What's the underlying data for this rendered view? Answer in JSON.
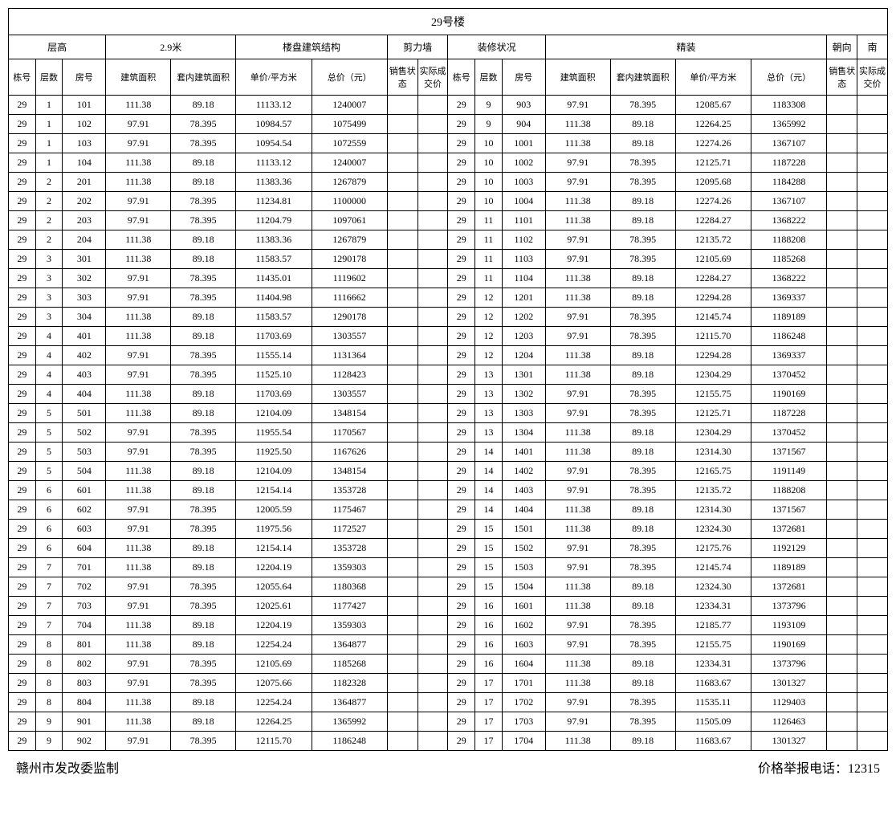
{
  "title": "29号楼",
  "header_group1": {
    "h1": "层高",
    "h2": "2.9米",
    "h3": "楼盘建筑结构",
    "h4": "剪力墙",
    "h5": "装修状况",
    "h6": "精装",
    "h7": "朝向",
    "h8": "南"
  },
  "columns": {
    "c1": "栋号",
    "c2": "层数",
    "c3": "房号",
    "c4": "建筑面积",
    "c5": "套内建筑面积",
    "c6": "单价/平方米",
    "c7": "总价（元）",
    "c8": "销售状态",
    "c9": "实际成交价"
  },
  "left_rows": [
    [
      "29",
      "1",
      "101",
      "111.38",
      "89.18",
      "11133.12",
      "1240007",
      "",
      ""
    ],
    [
      "29",
      "1",
      "102",
      "97.91",
      "78.395",
      "10984.57",
      "1075499",
      "",
      ""
    ],
    [
      "29",
      "1",
      "103",
      "97.91",
      "78.395",
      "10954.54",
      "1072559",
      "",
      ""
    ],
    [
      "29",
      "1",
      "104",
      "111.38",
      "89.18",
      "11133.12",
      "1240007",
      "",
      ""
    ],
    [
      "29",
      "2",
      "201",
      "111.38",
      "89.18",
      "11383.36",
      "1267879",
      "",
      ""
    ],
    [
      "29",
      "2",
      "202",
      "97.91",
      "78.395",
      "11234.81",
      "1100000",
      "",
      ""
    ],
    [
      "29",
      "2",
      "203",
      "97.91",
      "78.395",
      "11204.79",
      "1097061",
      "",
      ""
    ],
    [
      "29",
      "2",
      "204",
      "111.38",
      "89.18",
      "11383.36",
      "1267879",
      "",
      ""
    ],
    [
      "29",
      "3",
      "301",
      "111.38",
      "89.18",
      "11583.57",
      "1290178",
      "",
      ""
    ],
    [
      "29",
      "3",
      "302",
      "97.91",
      "78.395",
      "11435.01",
      "1119602",
      "",
      ""
    ],
    [
      "29",
      "3",
      "303",
      "97.91",
      "78.395",
      "11404.98",
      "1116662",
      "",
      ""
    ],
    [
      "29",
      "3",
      "304",
      "111.38",
      "89.18",
      "11583.57",
      "1290178",
      "",
      ""
    ],
    [
      "29",
      "4",
      "401",
      "111.38",
      "89.18",
      "11703.69",
      "1303557",
      "",
      ""
    ],
    [
      "29",
      "4",
      "402",
      "97.91",
      "78.395",
      "11555.14",
      "1131364",
      "",
      ""
    ],
    [
      "29",
      "4",
      "403",
      "97.91",
      "78.395",
      "11525.10",
      "1128423",
      "",
      ""
    ],
    [
      "29",
      "4",
      "404",
      "111.38",
      "89.18",
      "11703.69",
      "1303557",
      "",
      ""
    ],
    [
      "29",
      "5",
      "501",
      "111.38",
      "89.18",
      "12104.09",
      "1348154",
      "",
      ""
    ],
    [
      "29",
      "5",
      "502",
      "97.91",
      "78.395",
      "11955.54",
      "1170567",
      "",
      ""
    ],
    [
      "29",
      "5",
      "503",
      "97.91",
      "78.395",
      "11925.50",
      "1167626",
      "",
      ""
    ],
    [
      "29",
      "5",
      "504",
      "111.38",
      "89.18",
      "12104.09",
      "1348154",
      "",
      ""
    ],
    [
      "29",
      "6",
      "601",
      "111.38",
      "89.18",
      "12154.14",
      "1353728",
      "",
      ""
    ],
    [
      "29",
      "6",
      "602",
      "97.91",
      "78.395",
      "12005.59",
      "1175467",
      "",
      ""
    ],
    [
      "29",
      "6",
      "603",
      "97.91",
      "78.395",
      "11975.56",
      "1172527",
      "",
      ""
    ],
    [
      "29",
      "6",
      "604",
      "111.38",
      "89.18",
      "12154.14",
      "1353728",
      "",
      ""
    ],
    [
      "29",
      "7",
      "701",
      "111.38",
      "89.18",
      "12204.19",
      "1359303",
      "",
      ""
    ],
    [
      "29",
      "7",
      "702",
      "97.91",
      "78.395",
      "12055.64",
      "1180368",
      "",
      ""
    ],
    [
      "29",
      "7",
      "703",
      "97.91",
      "78.395",
      "12025.61",
      "1177427",
      "",
      ""
    ],
    [
      "29",
      "7",
      "704",
      "111.38",
      "89.18",
      "12204.19",
      "1359303",
      "",
      ""
    ],
    [
      "29",
      "8",
      "801",
      "111.38",
      "89.18",
      "12254.24",
      "1364877",
      "",
      ""
    ],
    [
      "29",
      "8",
      "802",
      "97.91",
      "78.395",
      "12105.69",
      "1185268",
      "",
      ""
    ],
    [
      "29",
      "8",
      "803",
      "97.91",
      "78.395",
      "12075.66",
      "1182328",
      "",
      ""
    ],
    [
      "29",
      "8",
      "804",
      "111.38",
      "89.18",
      "12254.24",
      "1364877",
      "",
      ""
    ],
    [
      "29",
      "9",
      "901",
      "111.38",
      "89.18",
      "12264.25",
      "1365992",
      "",
      ""
    ],
    [
      "29",
      "9",
      "902",
      "97.91",
      "78.395",
      "12115.70",
      "1186248",
      "",
      ""
    ]
  ],
  "right_rows": [
    [
      "29",
      "9",
      "903",
      "97.91",
      "78.395",
      "12085.67",
      "1183308",
      "",
      ""
    ],
    [
      "29",
      "9",
      "904",
      "111.38",
      "89.18",
      "12264.25",
      "1365992",
      "",
      ""
    ],
    [
      "29",
      "10",
      "1001",
      "111.38",
      "89.18",
      "12274.26",
      "1367107",
      "",
      ""
    ],
    [
      "29",
      "10",
      "1002",
      "97.91",
      "78.395",
      "12125.71",
      "1187228",
      "",
      ""
    ],
    [
      "29",
      "10",
      "1003",
      "97.91",
      "78.395",
      "12095.68",
      "1184288",
      "",
      ""
    ],
    [
      "29",
      "10",
      "1004",
      "111.38",
      "89.18",
      "12274.26",
      "1367107",
      "",
      ""
    ],
    [
      "29",
      "11",
      "1101",
      "111.38",
      "89.18",
      "12284.27",
      "1368222",
      "",
      ""
    ],
    [
      "29",
      "11",
      "1102",
      "97.91",
      "78.395",
      "12135.72",
      "1188208",
      "",
      ""
    ],
    [
      "29",
      "11",
      "1103",
      "97.91",
      "78.395",
      "12105.69",
      "1185268",
      "",
      ""
    ],
    [
      "29",
      "11",
      "1104",
      "111.38",
      "89.18",
      "12284.27",
      "1368222",
      "",
      ""
    ],
    [
      "29",
      "12",
      "1201",
      "111.38",
      "89.18",
      "12294.28",
      "1369337",
      "",
      ""
    ],
    [
      "29",
      "12",
      "1202",
      "97.91",
      "78.395",
      "12145.74",
      "1189189",
      "",
      ""
    ],
    [
      "29",
      "12",
      "1203",
      "97.91",
      "78.395",
      "12115.70",
      "1186248",
      "",
      ""
    ],
    [
      "29",
      "12",
      "1204",
      "111.38",
      "89.18",
      "12294.28",
      "1369337",
      "",
      ""
    ],
    [
      "29",
      "13",
      "1301",
      "111.38",
      "89.18",
      "12304.29",
      "1370452",
      "",
      ""
    ],
    [
      "29",
      "13",
      "1302",
      "97.91",
      "78.395",
      "12155.75",
      "1190169",
      "",
      ""
    ],
    [
      "29",
      "13",
      "1303",
      "97.91",
      "78.395",
      "12125.71",
      "1187228",
      "",
      ""
    ],
    [
      "29",
      "13",
      "1304",
      "111.38",
      "89.18",
      "12304.29",
      "1370452",
      "",
      ""
    ],
    [
      "29",
      "14",
      "1401",
      "111.38",
      "89.18",
      "12314.30",
      "1371567",
      "",
      ""
    ],
    [
      "29",
      "14",
      "1402",
      "97.91",
      "78.395",
      "12165.75",
      "1191149",
      "",
      ""
    ],
    [
      "29",
      "14",
      "1403",
      "97.91",
      "78.395",
      "12135.72",
      "1188208",
      "",
      ""
    ],
    [
      "29",
      "14",
      "1404",
      "111.38",
      "89.18",
      "12314.30",
      "1371567",
      "",
      ""
    ],
    [
      "29",
      "15",
      "1501",
      "111.38",
      "89.18",
      "12324.30",
      "1372681",
      "",
      ""
    ],
    [
      "29",
      "15",
      "1502",
      "97.91",
      "78.395",
      "12175.76",
      "1192129",
      "",
      ""
    ],
    [
      "29",
      "15",
      "1503",
      "97.91",
      "78.395",
      "12145.74",
      "1189189",
      "",
      ""
    ],
    [
      "29",
      "15",
      "1504",
      "111.38",
      "89.18",
      "12324.30",
      "1372681",
      "",
      ""
    ],
    [
      "29",
      "16",
      "1601",
      "111.38",
      "89.18",
      "12334.31",
      "1373796",
      "",
      ""
    ],
    [
      "29",
      "16",
      "1602",
      "97.91",
      "78.395",
      "12185.77",
      "1193109",
      "",
      ""
    ],
    [
      "29",
      "16",
      "1603",
      "97.91",
      "78.395",
      "12155.75",
      "1190169",
      "",
      ""
    ],
    [
      "29",
      "16",
      "1604",
      "111.38",
      "89.18",
      "12334.31",
      "1373796",
      "",
      ""
    ],
    [
      "29",
      "17",
      "1701",
      "111.38",
      "89.18",
      "11683.67",
      "1301327",
      "",
      ""
    ],
    [
      "29",
      "17",
      "1702",
      "97.91",
      "78.395",
      "11535.11",
      "1129403",
      "",
      ""
    ],
    [
      "29",
      "17",
      "1703",
      "97.91",
      "78.395",
      "11505.09",
      "1126463",
      "",
      ""
    ],
    [
      "29",
      "17",
      "1704",
      "111.38",
      "89.18",
      "11683.67",
      "1301327",
      "",
      ""
    ]
  ],
  "footer": {
    "left": "赣州市发改委监制",
    "right": "价格举报电话：12315"
  }
}
